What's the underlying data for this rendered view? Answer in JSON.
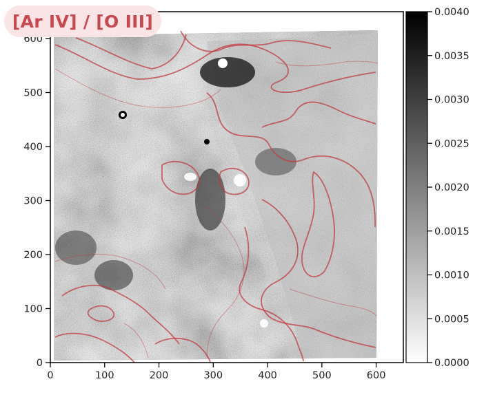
{
  "title": "[Ar IV] / [O III]",
  "image": {
    "x_ticks": [
      "0",
      "100",
      "200",
      "300",
      "400",
      "500",
      "600"
    ],
    "y_ticks": [
      "0",
      "100",
      "200",
      "300",
      "400",
      "500",
      "600"
    ],
    "x_range": [
      0,
      650
    ],
    "y_range": [
      0,
      600
    ],
    "contour_color": "#c0393f",
    "colormap": "gray_r"
  },
  "colorbar": {
    "ticks": [
      "0.0000",
      "0.0005",
      "0.0010",
      "0.0015",
      "0.0020",
      "0.0025",
      "0.0030",
      "0.0035",
      "0.0040"
    ],
    "range": [
      0,
      0.004
    ]
  }
}
